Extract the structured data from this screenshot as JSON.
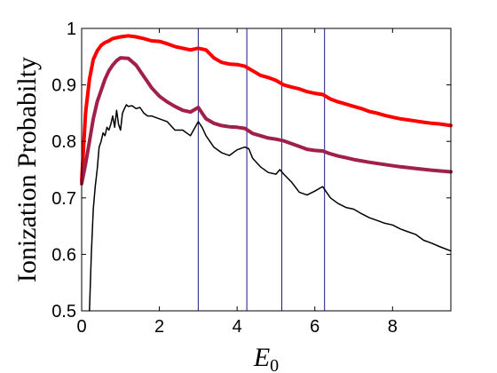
{
  "chart_data": {
    "type": "line",
    "xlabel": "E",
    "xlabel_sub": "0",
    "ylabel": "Ionization Probabilty",
    "xlim": [
      0,
      9.5
    ],
    "ylim": [
      0.5,
      1.0
    ],
    "xticks": [
      0,
      2,
      4,
      6,
      8
    ],
    "yticks": [
      0.5,
      0.6,
      0.7,
      0.8,
      0.9,
      1.0
    ],
    "ytick_labels": [
      "0.5",
      "0.6",
      "0.7",
      "0.8",
      "0.9",
      "1"
    ],
    "grid": false,
    "vlines": [
      3.0,
      4.25,
      5.15,
      6.25
    ],
    "vline_color": "#1a1a8c",
    "series": [
      {
        "color": "#ff0000",
        "width": 4,
        "x": [
          0,
          0.1,
          0.2,
          0.3,
          0.4,
          0.5,
          0.6,
          0.7,
          0.8,
          1.0,
          1.2,
          1.4,
          1.6,
          1.8,
          2.0,
          2.2,
          2.4,
          2.6,
          2.8,
          3.0,
          3.2,
          3.4,
          3.6,
          3.8,
          4.0,
          4.2,
          4.4,
          4.6,
          4.8,
          5.0,
          5.2,
          5.4,
          5.6,
          5.8,
          6.0,
          6.2,
          6.4,
          6.6,
          6.8,
          7.0,
          7.2,
          7.4,
          7.6,
          7.8,
          8.0,
          8.2,
          8.4,
          8.6,
          8.8,
          9.0,
          9.2,
          9.5
        ],
        "y": [
          0.73,
          0.85,
          0.91,
          0.945,
          0.96,
          0.97,
          0.975,
          0.978,
          0.982,
          0.985,
          0.987,
          0.985,
          0.982,
          0.978,
          0.977,
          0.973,
          0.968,
          0.965,
          0.962,
          0.965,
          0.962,
          0.948,
          0.94,
          0.937,
          0.936,
          0.933,
          0.925,
          0.917,
          0.913,
          0.908,
          0.9,
          0.896,
          0.893,
          0.888,
          0.885,
          0.883,
          0.875,
          0.87,
          0.866,
          0.862,
          0.858,
          0.853,
          0.85,
          0.846,
          0.843,
          0.84,
          0.838,
          0.836,
          0.834,
          0.832,
          0.831,
          0.828
        ]
      },
      {
        "color": "#a0204a",
        "width": 4,
        "x": [
          0,
          0.1,
          0.2,
          0.3,
          0.4,
          0.5,
          0.6,
          0.7,
          0.8,
          0.9,
          1.0,
          1.2,
          1.4,
          1.6,
          1.8,
          2.0,
          2.2,
          2.4,
          2.6,
          2.8,
          3.0,
          3.2,
          3.4,
          3.6,
          3.8,
          4.0,
          4.2,
          4.4,
          4.6,
          4.8,
          5.0,
          5.2,
          5.4,
          5.6,
          5.8,
          6.0,
          6.2,
          6.4,
          6.6,
          6.8,
          7.0,
          7.4,
          7.8,
          8.2,
          8.6,
          9.0,
          9.5
        ],
        "y": [
          0.725,
          0.76,
          0.8,
          0.84,
          0.87,
          0.89,
          0.91,
          0.925,
          0.935,
          0.943,
          0.948,
          0.947,
          0.935,
          0.915,
          0.895,
          0.88,
          0.87,
          0.862,
          0.855,
          0.852,
          0.86,
          0.84,
          0.832,
          0.828,
          0.826,
          0.825,
          0.823,
          0.814,
          0.81,
          0.806,
          0.804,
          0.801,
          0.796,
          0.791,
          0.786,
          0.784,
          0.783,
          0.778,
          0.774,
          0.771,
          0.768,
          0.763,
          0.759,
          0.755,
          0.752,
          0.749,
          0.746
        ]
      },
      {
        "color": "#000000",
        "width": 1.5,
        "x": [
          0.2,
          0.25,
          0.3,
          0.35,
          0.4,
          0.45,
          0.5,
          0.55,
          0.6,
          0.65,
          0.7,
          0.75,
          0.8,
          0.85,
          0.9,
          0.95,
          1.0,
          1.05,
          1.1,
          1.15,
          1.2,
          1.3,
          1.4,
          1.5,
          1.6,
          1.7,
          1.8,
          2.0,
          2.2,
          2.4,
          2.6,
          2.8,
          3.0,
          3.1,
          3.2,
          3.4,
          3.6,
          3.8,
          4.0,
          4.2,
          4.3,
          4.4,
          4.6,
          4.8,
          5.0,
          5.1,
          5.2,
          5.4,
          5.6,
          5.8,
          6.0,
          6.2,
          6.3,
          6.4,
          6.6,
          6.8,
          7.0,
          7.2,
          7.4,
          7.6,
          7.8,
          8.0,
          8.2,
          8.4,
          8.6,
          8.8,
          9.0,
          9.2,
          9.5
        ],
        "y": [
          0.5,
          0.6,
          0.68,
          0.72,
          0.75,
          0.79,
          0.8,
          0.815,
          0.81,
          0.825,
          0.82,
          0.83,
          0.845,
          0.825,
          0.855,
          0.83,
          0.82,
          0.85,
          0.858,
          0.865,
          0.862,
          0.863,
          0.858,
          0.86,
          0.85,
          0.845,
          0.845,
          0.84,
          0.835,
          0.82,
          0.82,
          0.81,
          0.835,
          0.825,
          0.81,
          0.79,
          0.78,
          0.775,
          0.785,
          0.79,
          0.787,
          0.77,
          0.755,
          0.745,
          0.742,
          0.75,
          0.742,
          0.728,
          0.71,
          0.705,
          0.712,
          0.72,
          0.71,
          0.7,
          0.69,
          0.683,
          0.68,
          0.672,
          0.665,
          0.66,
          0.655,
          0.652,
          0.645,
          0.64,
          0.635,
          0.625,
          0.62,
          0.614,
          0.606
        ]
      }
    ]
  }
}
